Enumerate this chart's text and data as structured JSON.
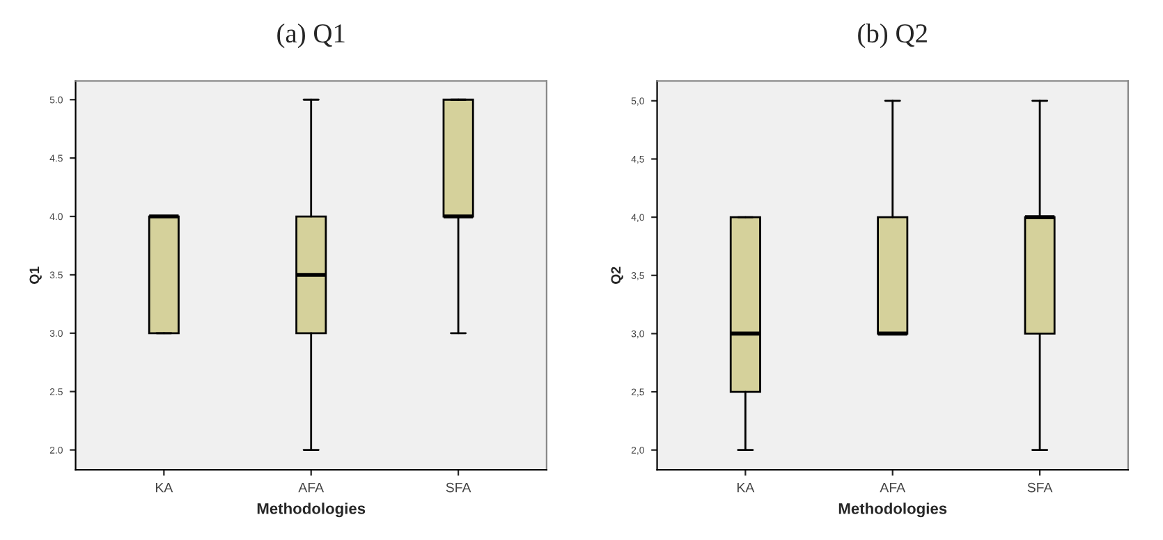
{
  "chart_data": [
    {
      "type": "box",
      "title": "(a) Q1",
      "xlabel": "Methodologies",
      "ylabel": "Q1",
      "categories": [
        "KA",
        "AFA",
        "SFA"
      ],
      "color": "#d5d19b",
      "ylim": [
        1.83,
        5.16
      ],
      "yticks": [
        {
          "value": 2,
          "label": "2.0"
        },
        {
          "value": 2.5,
          "label": "2.5"
        },
        {
          "value": 3,
          "label": "3.0"
        },
        {
          "value": 3.5,
          "label": "3.5"
        },
        {
          "value": 4,
          "label": "4.0"
        },
        {
          "value": 4.5,
          "label": "4.5"
        },
        {
          "value": 5,
          "label": "5.0"
        }
      ],
      "boxes": [
        {
          "low": 3,
          "q1": 3,
          "median": 4,
          "q3": 4,
          "high": 4
        },
        {
          "low": 2,
          "q1": 3,
          "median": 3.5,
          "q3": 4,
          "high": 5
        },
        {
          "low": 3,
          "q1": 4,
          "median": 4,
          "q3": 5,
          "high": 5
        }
      ]
    },
    {
      "type": "box",
      "title": "(b) Q2",
      "xlabel": "Methodologies",
      "ylabel": "Q2",
      "categories": [
        "KA",
        "AFA",
        "SFA"
      ],
      "color": "#d5d19b",
      "ylim": [
        1.83,
        5.17
      ],
      "yticks": [
        {
          "value": 2,
          "label": "2,0"
        },
        {
          "value": 2.5,
          "label": "2,5"
        },
        {
          "value": 3,
          "label": "3,0"
        },
        {
          "value": 3.5,
          "label": "3,5"
        },
        {
          "value": 4,
          "label": "4,0"
        },
        {
          "value": 4.5,
          "label": "4,5"
        },
        {
          "value": 5,
          "label": "5,0"
        }
      ],
      "boxes": [
        {
          "low": 2,
          "q1": 2.5,
          "median": 3,
          "q3": 4,
          "high": 4
        },
        {
          "low": 3,
          "q1": 3,
          "median": 3,
          "q3": 4,
          "high": 5
        },
        {
          "low": 2,
          "q1": 3,
          "median": 4,
          "q3": 4,
          "high": 5
        }
      ]
    }
  ]
}
